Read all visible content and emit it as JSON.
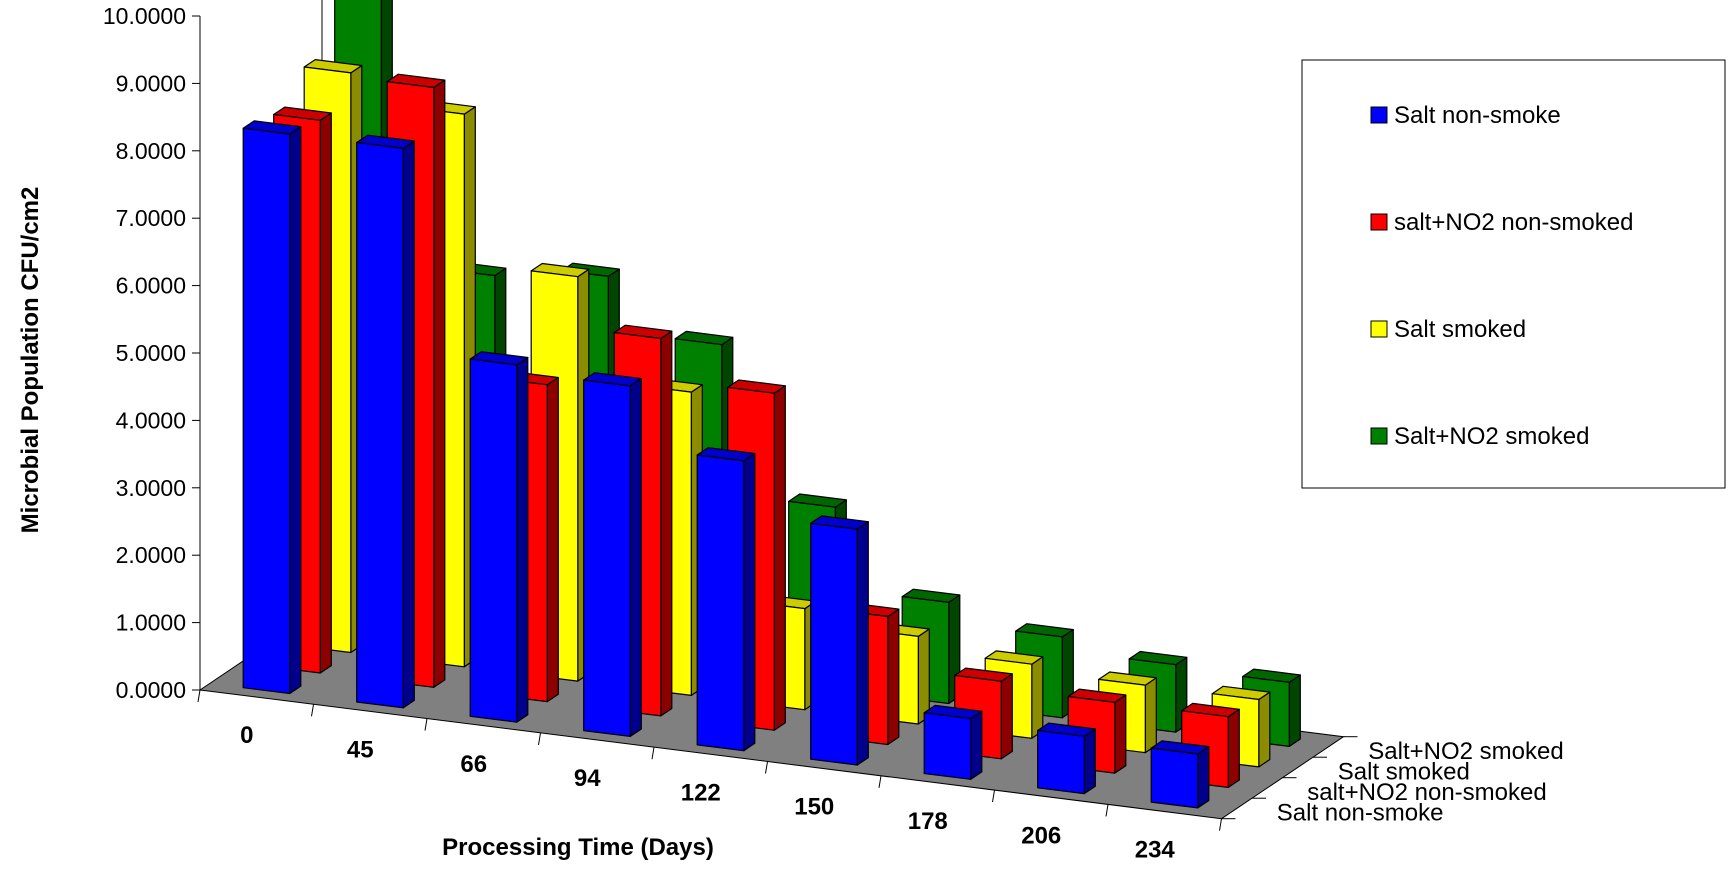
{
  "chart_data": {
    "type": "bar",
    "variant": "3d-column-with-depth",
    "title": "",
    "xlabel": "Processing Time (Days)",
    "ylabel": "Microbial Population CFU/cm2",
    "ylim": [
      0,
      10
    ],
    "y_ticks": [
      "0.0000",
      "1.0000",
      "2.0000",
      "3.0000",
      "4.0000",
      "5.0000",
      "6.0000",
      "7.0000",
      "8.0000",
      "9.0000",
      "10.0000"
    ],
    "categories": [
      "0",
      "45",
      "66",
      "94",
      "122",
      "150",
      "178",
      "206",
      "234"
    ],
    "depth_labels": [
      "Salt non-smoke",
      "salt+NO2 non-smoked",
      "Salt smoked",
      "Salt+NO2 smoked"
    ],
    "grid": false,
    "floor_color": "#808080",
    "legend_position": "right",
    "series": [
      {
        "name": "Salt non-smoke",
        "color": "#0000FF",
        "values": [
          8.3,
          8.3,
          5.3,
          5.2,
          4.3,
          3.5,
          0.9,
          0.85,
          0.8
        ]
      },
      {
        "name": "salt+NO2 non-smoked",
        "color": "#FF0000",
        "values": [
          8.2,
          8.9,
          4.7,
          5.6,
          5.0,
          1.9,
          1.15,
          1.05,
          1.05
        ]
      },
      {
        "name": "Salt smoked",
        "color": "#FFFF00",
        "values": [
          8.6,
          8.2,
          6.0,
          4.5,
          1.5,
          1.3,
          1.1,
          1.0,
          1.0
        ]
      },
      {
        "name": "Salt+NO2 smoked",
        "color": "#008000",
        "values": [
          9.6,
          5.5,
          5.7,
          4.9,
          2.7,
          1.5,
          1.2,
          1.0,
          0.95
        ]
      }
    ]
  }
}
